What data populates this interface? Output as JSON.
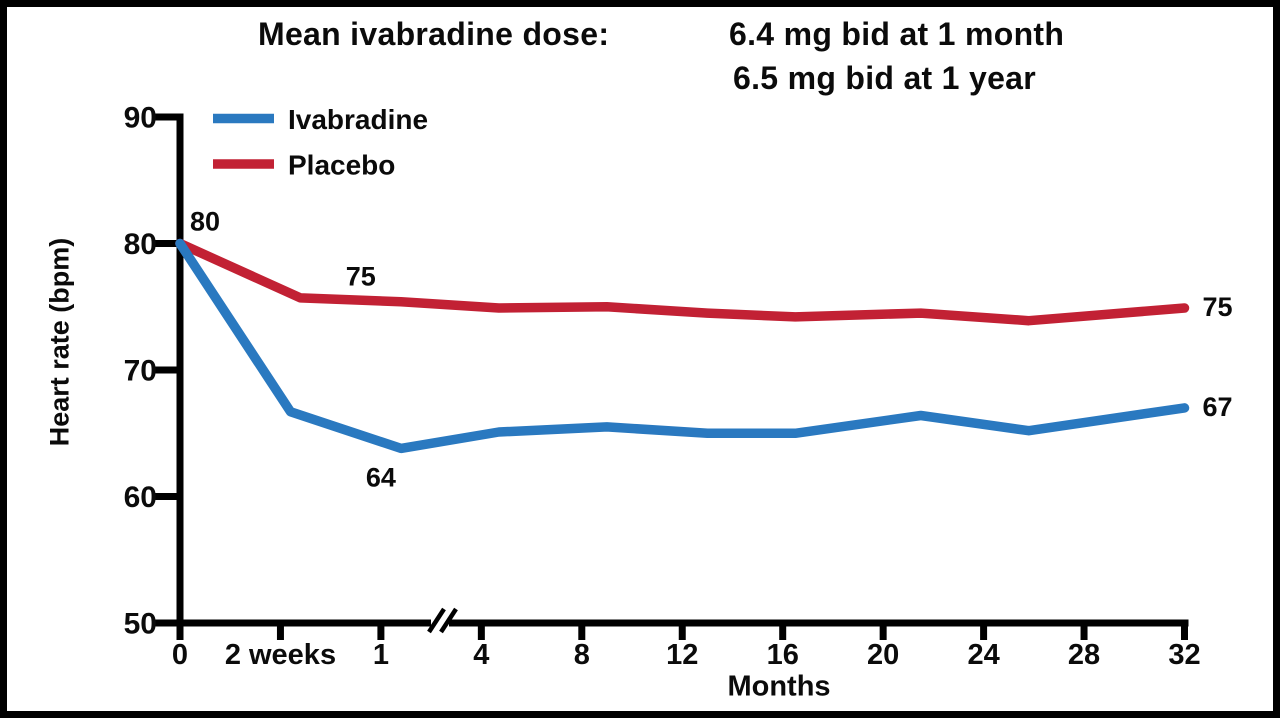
{
  "title": {
    "prefix": "Mean ivabradine dose:",
    "dose_line1": "6.4 mg bid at 1 month",
    "dose_line2": "6.5 mg bid at 1 year"
  },
  "chart_data": {
    "type": "line",
    "title": "Mean ivabradine dose: 6.4 mg bid at 1 month; 6.5 mg bid at 1 year",
    "xlabel": "Months",
    "ylabel": "Heart rate (bpm)",
    "ylim": [
      50,
      90
    ],
    "y_ticks": [
      90,
      80,
      70,
      60,
      50
    ],
    "x_ticks": [
      {
        "label": "0",
        "month": 0
      },
      {
        "label": "2 weeks",
        "month": 0.5
      },
      {
        "label": "1",
        "month": 1
      },
      {
        "label": "4",
        "month": 4
      },
      {
        "label": "8",
        "month": 8
      },
      {
        "label": "12",
        "month": 12
      },
      {
        "label": "16",
        "month": 16
      },
      {
        "label": "20",
        "month": 20
      },
      {
        "label": "24",
        "month": 24
      },
      {
        "label": "28",
        "month": 28
      },
      {
        "label": "32",
        "month": 32
      }
    ],
    "axis_break": {
      "between": [
        "1",
        "4"
      ]
    },
    "axis_color": "#000000",
    "background": "#ffffff",
    "grid": "off",
    "legend_position": "top-left-inside",
    "series": [
      {
        "name": "Ivabradine",
        "color": "#2A79C0",
        "points": [
          [
            0,
            80
          ],
          [
            0.55,
            66.7
          ],
          [
            1.6,
            63.8
          ],
          [
            4.7,
            65.1
          ],
          [
            9,
            65.5
          ],
          [
            13,
            65.0
          ],
          [
            16.5,
            65.0
          ],
          [
            21.5,
            66.4
          ],
          [
            25.8,
            65.2
          ],
          [
            32,
            67.0
          ]
        ]
      },
      {
        "name": "Placebo",
        "color": "#C22134",
        "points": [
          [
            0,
            80
          ],
          [
            0.6,
            75.7
          ],
          [
            1.6,
            75.4
          ],
          [
            4.7,
            74.9
          ],
          [
            9,
            75.0
          ],
          [
            13,
            74.5
          ],
          [
            16.5,
            74.2
          ],
          [
            21.5,
            74.5
          ],
          [
            25.8,
            73.9
          ],
          [
            32,
            74.9
          ]
        ]
      }
    ],
    "annotations": [
      {
        "text": "80",
        "month": 0,
        "value": 80,
        "placement": "above-right"
      },
      {
        "text": "75",
        "month": 0.9,
        "value": 75.5,
        "placement": "above"
      },
      {
        "text": "64",
        "month": 1,
        "value": 63.8,
        "placement": "below"
      },
      {
        "text": "75",
        "month": 32,
        "value": 74.9,
        "placement": "right"
      },
      {
        "text": "67",
        "month": 32,
        "value": 67.0,
        "placement": "right"
      }
    ]
  }
}
